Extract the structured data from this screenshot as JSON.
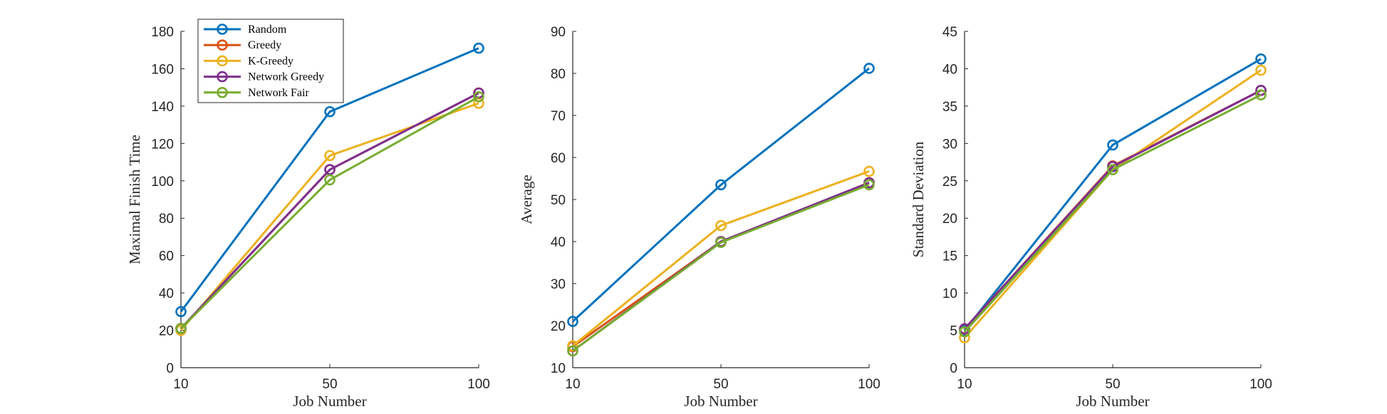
{
  "chart_data": [
    {
      "type": "line",
      "xlabel": "Job Number",
      "ylabel": "Maximal Finish Time",
      "ylim": [
        0,
        180
      ],
      "yticks": [
        0,
        20,
        40,
        60,
        80,
        100,
        120,
        140,
        160,
        180
      ],
      "categories": [
        "10",
        "50",
        "100"
      ],
      "legend": {
        "placement": "top-left"
      },
      "series": [
        {
          "name": "Random",
          "color": "#0072BD",
          "values": [
            30,
            137,
            171
          ]
        },
        {
          "name": "Greedy",
          "color": "#D95319",
          "values": [
            21,
            106,
            147
          ]
        },
        {
          "name": "K-Greedy",
          "color": "#EDB120",
          "values": [
            20,
            113.5,
            141.5
          ]
        },
        {
          "name": "Network Greedy",
          "color": "#7E2F8E",
          "values": [
            21,
            106,
            147
          ]
        },
        {
          "name": "Network Fair",
          "color": "#77AC30",
          "values": [
            21,
            100.5,
            145
          ]
        }
      ]
    },
    {
      "type": "line",
      "xlabel": "Job Number",
      "ylabel": "Average",
      "ylim": [
        10,
        90
      ],
      "yticks": [
        10,
        20,
        30,
        40,
        50,
        60,
        70,
        80,
        90
      ],
      "categories": [
        "10",
        "50",
        "100"
      ],
      "series": [
        {
          "name": "Random",
          "color": "#0072BD",
          "values": [
            21,
            53.5,
            81.2
          ]
        },
        {
          "name": "Greedy",
          "color": "#D95319",
          "values": [
            15,
            40,
            54
          ]
        },
        {
          "name": "K-Greedy",
          "color": "#EDB120",
          "values": [
            15.2,
            43.8,
            56.7
          ]
        },
        {
          "name": "Network Greedy",
          "color": "#7E2F8E",
          "values": [
            14,
            40,
            54
          ]
        },
        {
          "name": "Network Fair",
          "color": "#77AC30",
          "values": [
            14,
            39.8,
            53.5
          ]
        }
      ]
    },
    {
      "type": "line",
      "xlabel": "Job Number",
      "ylabel": "Standard Deviation",
      "ylim": [
        0,
        45
      ],
      "yticks": [
        0,
        5,
        10,
        15,
        20,
        25,
        30,
        35,
        40,
        45
      ],
      "categories": [
        "10",
        "50",
        "100"
      ],
      "series": [
        {
          "name": "Random",
          "color": "#0072BD",
          "values": [
            5,
            29.8,
            41.3
          ]
        },
        {
          "name": "Greedy",
          "color": "#D95319",
          "values": [
            5.2,
            27,
            37.1
          ]
        },
        {
          "name": "K-Greedy",
          "color": "#EDB120",
          "values": [
            4,
            26.5,
            39.8
          ]
        },
        {
          "name": "Network Greedy",
          "color": "#7E2F8E",
          "values": [
            5.2,
            26.9,
            37.1
          ]
        },
        {
          "name": "Network Fair",
          "color": "#77AC30",
          "values": [
            4.8,
            26.5,
            36.5
          ]
        }
      ]
    }
  ]
}
